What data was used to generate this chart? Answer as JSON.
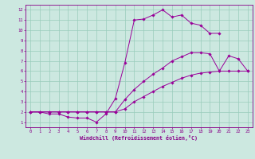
{
  "xlabel": "Windchill (Refroidissement éolien,°C)",
  "bg_color": "#cce8e0",
  "line_color": "#990099",
  "grid_color": "#99ccbb",
  "xlim": [
    -0.5,
    23.5
  ],
  "ylim": [
    0.5,
    12.5
  ],
  "xticks": [
    0,
    1,
    2,
    3,
    4,
    5,
    6,
    7,
    8,
    9,
    10,
    11,
    12,
    13,
    14,
    15,
    16,
    17,
    18,
    19,
    20,
    21,
    22,
    23
  ],
  "yticks": [
    1,
    2,
    3,
    4,
    5,
    6,
    7,
    8,
    9,
    10,
    11,
    12
  ],
  "line1_x": [
    0,
    1,
    2,
    3,
    4,
    5,
    6,
    7,
    8,
    9,
    10,
    11,
    12,
    13,
    14,
    15,
    16,
    17,
    18,
    19,
    20
  ],
  "line1_y": [
    2,
    2,
    1.8,
    1.8,
    1.5,
    1.4,
    1.4,
    1.0,
    1.8,
    3.3,
    6.8,
    11.0,
    11.1,
    11.5,
    12.0,
    11.3,
    11.5,
    10.7,
    10.5,
    9.7,
    9.7
  ],
  "line2_x": [
    0,
    1,
    2,
    3,
    4,
    5,
    6,
    7,
    8,
    9,
    10,
    11,
    12,
    13,
    14,
    15,
    16,
    17,
    18,
    19,
    20,
    21,
    22,
    23
  ],
  "line2_y": [
    2,
    2,
    2,
    2,
    2,
    2,
    2,
    2,
    2,
    2,
    3.2,
    4.2,
    5.0,
    5.7,
    6.3,
    7.0,
    7.4,
    7.8,
    7.8,
    7.7,
    6.0,
    7.5,
    7.2,
    6.0
  ],
  "line3_x": [
    0,
    1,
    2,
    3,
    4,
    5,
    6,
    7,
    8,
    9,
    10,
    11,
    12,
    13,
    14,
    15,
    16,
    17,
    18,
    19,
    20,
    21,
    22,
    23
  ],
  "line3_y": [
    2,
    2,
    2,
    2,
    2,
    2,
    2,
    2,
    2,
    2,
    2.3,
    3.0,
    3.5,
    4.0,
    4.5,
    4.9,
    5.3,
    5.6,
    5.8,
    5.9,
    6.0,
    6.0,
    6.0,
    6.0
  ]
}
